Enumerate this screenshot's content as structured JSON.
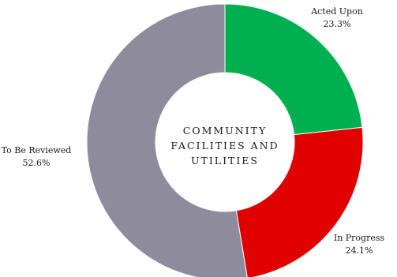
{
  "chart_data": {
    "type": "pie",
    "variant": "donut",
    "center_title": [
      "COMMUNITY",
      "FACILITIES AND",
      "UTILITIES"
    ],
    "slices": [
      {
        "label": "Acted Upon",
        "value": 23.3,
        "value_label": "23.3%",
        "color": "#00b050"
      },
      {
        "label": "In Progress",
        "value": 24.1,
        "value_label": "24.1%",
        "color": "#e00000"
      },
      {
        "label": "To Be Reviewed",
        "value": 52.6,
        "value_label": "52.6%",
        "color": "#8e8c9c"
      }
    ],
    "start_angle": "12 o'clock",
    "direction": "clockwise",
    "label_placement": "outside"
  }
}
